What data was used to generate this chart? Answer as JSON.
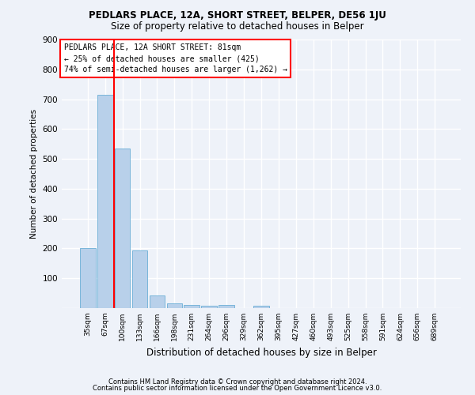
{
  "title1": "PEDLARS PLACE, 12A, SHORT STREET, BELPER, DE56 1JU",
  "title2": "Size of property relative to detached houses in Belper",
  "xlabel": "Distribution of detached houses by size in Belper",
  "ylabel": "Number of detached properties",
  "categories": [
    "35sqm",
    "67sqm",
    "100sqm",
    "133sqm",
    "166sqm",
    "198sqm",
    "231sqm",
    "264sqm",
    "296sqm",
    "329sqm",
    "362sqm",
    "395sqm",
    "427sqm",
    "460sqm",
    "493sqm",
    "525sqm",
    "558sqm",
    "591sqm",
    "624sqm",
    "656sqm",
    "689sqm"
  ],
  "values": [
    200,
    715,
    535,
    193,
    42,
    15,
    11,
    7,
    10,
    0,
    8,
    0,
    0,
    0,
    0,
    0,
    0,
    0,
    0,
    0,
    0
  ],
  "bar_color": "#b8d0ea",
  "bar_edge_color": "#6aaed6",
  "vline_x": 1.5,
  "vline_color": "red",
  "annotation_text": "PEDLARS PLACE, 12A SHORT STREET: 81sqm\n← 25% of detached houses are smaller (425)\n74% of semi-detached houses are larger (1,262) →",
  "annotation_box_color": "white",
  "annotation_box_edge_color": "red",
  "ylim": [
    0,
    900
  ],
  "yticks": [
    0,
    100,
    200,
    300,
    400,
    500,
    600,
    700,
    800,
    900
  ],
  "footer1": "Contains HM Land Registry data © Crown copyright and database right 2024.",
  "footer2": "Contains public sector information licensed under the Open Government Licence v3.0.",
  "bg_color": "#eef2f9",
  "plot_bg_color": "#eef2f9",
  "grid_color": "white"
}
